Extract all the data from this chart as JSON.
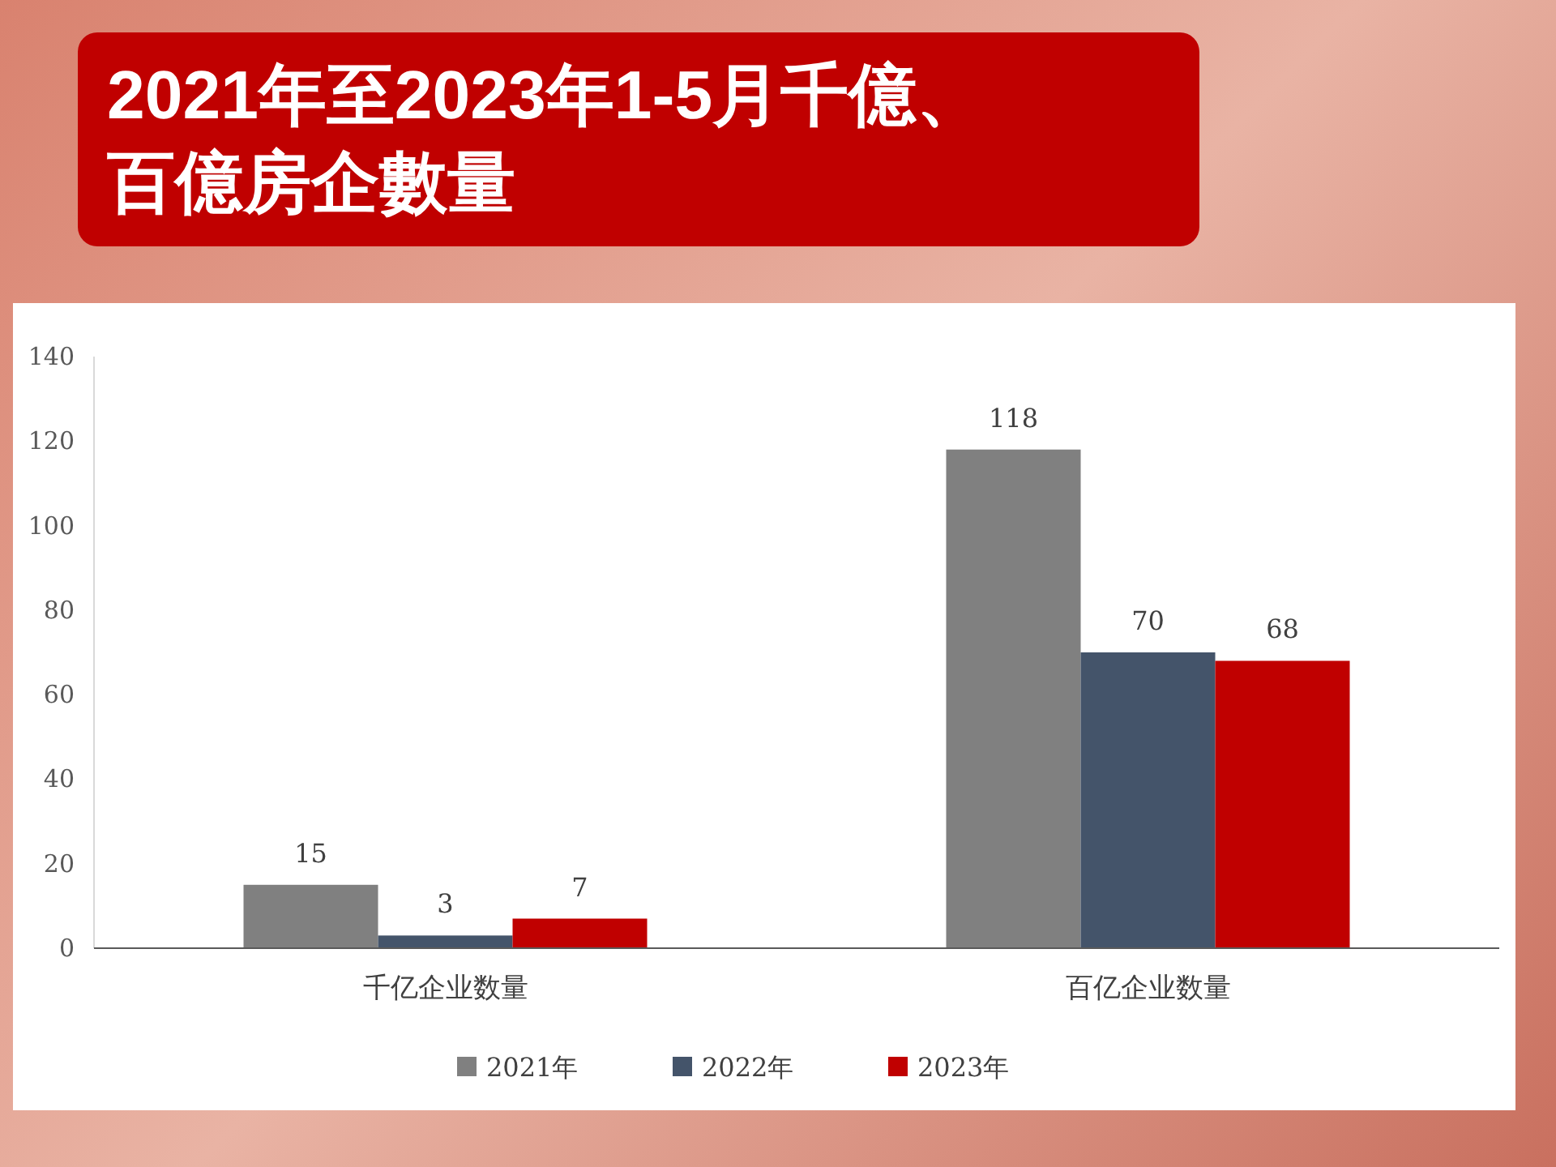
{
  "chart_data": {
    "type": "bar",
    "title": "2021年至2023年1-5月千億、百億房企數量",
    "categories": [
      "千亿企业数量",
      "百亿企业数量"
    ],
    "series": [
      {
        "name": "2021年",
        "color": "#808080",
        "values": [
          15,
          118
        ]
      },
      {
        "name": "2022年",
        "color": "#44546a",
        "values": [
          3,
          70
        ]
      },
      {
        "name": "2023年",
        "color": "#c00000",
        "values": [
          7,
          68
        ]
      }
    ],
    "ylim": [
      0,
      140
    ],
    "yticks": [
      0,
      20,
      40,
      60,
      80,
      100,
      120,
      140
    ],
    "data_labels": true,
    "legend": "bottom",
    "grid": false
  }
}
